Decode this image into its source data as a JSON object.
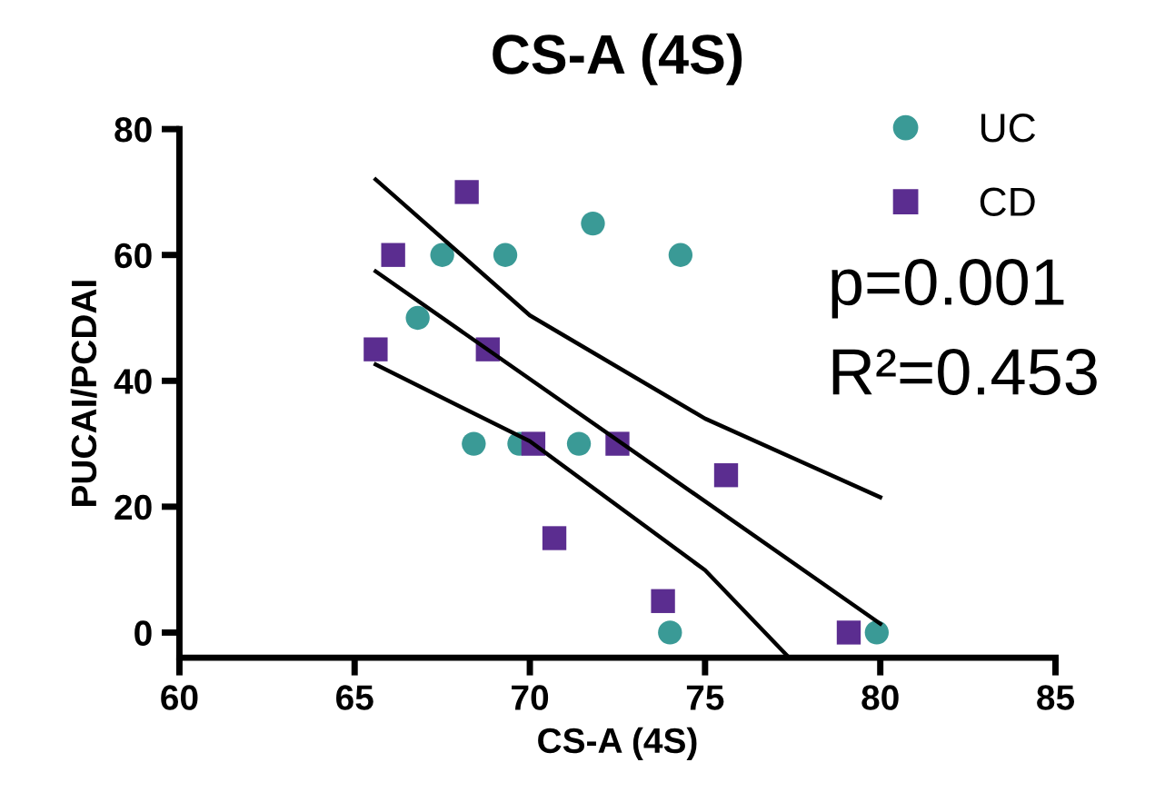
{
  "chart_data": {
    "type": "scatter",
    "title": "CS-A (4S)",
    "xlabel": "CS-A (4S)",
    "ylabel": "PUCAI/PCDAI",
    "xlim": [
      60,
      85
    ],
    "xticks": [
      60,
      65,
      70,
      75,
      80,
      85
    ],
    "ylim": [
      -4,
      80
    ],
    "yticks": [
      0,
      20,
      40,
      60,
      80
    ],
    "legend": "top right",
    "grid": false,
    "annotations": [
      "p=0.001",
      "R²=0.453"
    ],
    "series": [
      {
        "name": "UC",
        "color": "#3a9a96",
        "marker": "circle",
        "x": [
          67.5,
          69.3,
          71.8,
          74.3,
          66.8,
          68.4,
          69.7,
          71.4,
          74.0,
          79.9
        ],
        "values": [
          60,
          60,
          65,
          60,
          50,
          30,
          30,
          30,
          0,
          0
        ]
      },
      {
        "name": "CD",
        "color": "#5b2d90",
        "marker": "square",
        "x": [
          68.2,
          66.1,
          65.6,
          68.8,
          70.1,
          72.5,
          75.6,
          70.7,
          73.8,
          79.1
        ],
        "values": [
          70,
          60,
          45,
          45,
          30,
          30,
          25,
          15,
          5,
          0
        ]
      },
      {
        "type": "line",
        "color": "#000000",
        "marker": "none",
        "x": [
          65.6,
          80
        ],
        "values": [
          57.4,
          1.4
        ]
      },
      {
        "type": "line",
        "color": "#000000",
        "marker": "none",
        "x": [
          65.6,
          70,
          75,
          80
        ],
        "values": [
          72,
          50.4,
          34,
          21.5
        ]
      },
      {
        "type": "line",
        "color": "#000000",
        "marker": "none",
        "x": [
          65.6,
          70,
          75,
          77.4
        ],
        "values": [
          42.6,
          30.4,
          9.9,
          -4
        ]
      }
    ]
  }
}
